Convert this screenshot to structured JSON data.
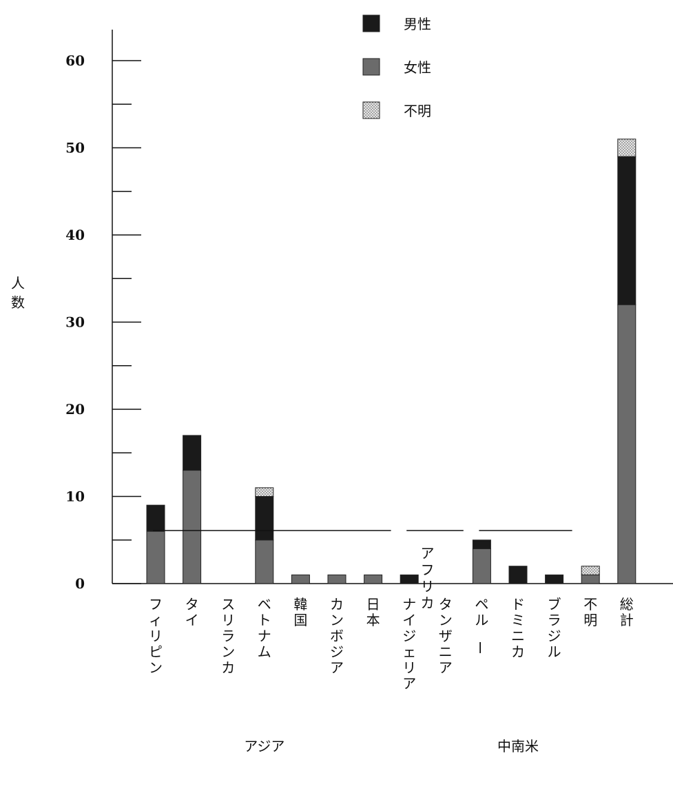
{
  "chart_data": {
    "type": "bar",
    "stacked": true,
    "title": "",
    "xlabel": "",
    "ylabel": "人数",
    "ylim": [
      0,
      60
    ],
    "y_major_ticks": [
      0,
      10,
      20,
      30,
      40,
      50,
      60
    ],
    "y_minor_ticks": [
      5,
      15,
      25,
      35,
      45,
      55
    ],
    "grid": false,
    "legend_placement": "top",
    "categories": [
      "フィリピン",
      "タイ",
      "スリランカ",
      "ベトナム",
      "韓国",
      "カンボジア",
      "日本",
      "ナイジェリア",
      "タンザニア",
      "ペルー",
      "ドミニカ",
      "ブラジル",
      "不明",
      "総計"
    ],
    "series": [
      {
        "name": "女性",
        "color": "#6b6b6b",
        "values": [
          6,
          13,
          0,
          5,
          1,
          1,
          1,
          0,
          0,
          4,
          0,
          0,
          1,
          32
        ]
      },
      {
        "name": "男性",
        "color": "#1a1a1a",
        "values": [
          3,
          4,
          0,
          5,
          0,
          0,
          0,
          1,
          0,
          1,
          2,
          1,
          0,
          17
        ]
      },
      {
        "name": "不明",
        "color": "#d4d4d4",
        "values": [
          0,
          0,
          0,
          1,
          0,
          0,
          0,
          0,
          0,
          0,
          0,
          0,
          1,
          2
        ]
      }
    ],
    "legend_order": [
      "男性",
      "女性",
      "不明"
    ],
    "groups": [
      {
        "label": "アジア",
        "from": 0,
        "to": 6
      },
      {
        "label": "アフリカ",
        "from": 7,
        "to": 8
      },
      {
        "label": "中南米",
        "from": 9,
        "to": 11
      }
    ]
  }
}
